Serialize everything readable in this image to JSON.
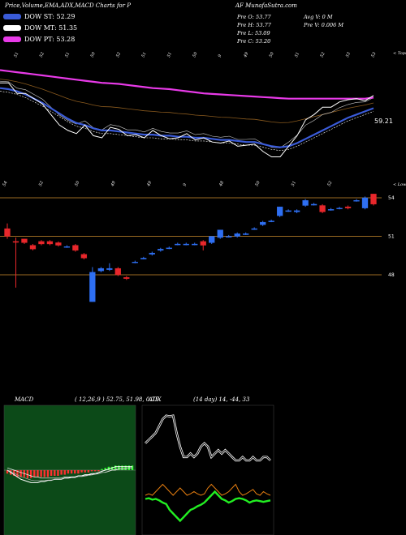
{
  "header": {
    "left": "Price,Volume,EMA,ADX,MACD Charts for P",
    "right": "AF MunafaSutra.com"
  },
  "legend": [
    {
      "label": "DOW ST: 52.29",
      "color": "#3a5bd8"
    },
    {
      "label": "DOW MT: 51.35",
      "color": "#ffffff"
    },
    {
      "label": "DOW PT: 53.28",
      "color": "#e83ae8"
    }
  ],
  "stats": {
    "open": "Pre   O: 53.77",
    "high": "Pre   H: 53.77",
    "low": "Pre   L: 53.09",
    "close": "Pre   C: 53.20",
    "avg_vol": "Avg V: 0   M",
    "pre_vol": "Pre   V: 0.006   M"
  },
  "chart_data": [
    {
      "type": "line",
      "name": "price-ema-panel",
      "top_label": "< Tops",
      "bottom_label": "< Lows",
      "last_value_label": "59.21",
      "top_ticks": [
        "51",
        "52",
        "51",
        "50",
        "52",
        "51",
        "51",
        "50",
        "9",
        "49",
        "50",
        "51",
        "52",
        "53",
        "53"
      ],
      "bottom_ticks": [
        "54",
        "52",
        "50",
        "49",
        "49",
        "9",
        "48",
        "50",
        "51",
        "52"
      ],
      "close": [
        61,
        61,
        60,
        60,
        59.5,
        59,
        58,
        57,
        56.5,
        56.2,
        57,
        56,
        55.8,
        56.8,
        56.6,
        56,
        56.1,
        55.8,
        56.5,
        56,
        55.7,
        55.8,
        56.2,
        55.6,
        55.8,
        55.4,
        55.3,
        55.5,
        55,
        55.1,
        55.2,
        54.5,
        54,
        54,
        55,
        56,
        57.5,
        58,
        58.7,
        58.7,
        59.2,
        59.4,
        59.5,
        59.3,
        59.8
      ],
      "ema_short": [
        60.5,
        60.4,
        60.2,
        59.9,
        59.5,
        59.1,
        58.6,
        58.1,
        57.6,
        57.2,
        57,
        56.7,
        56.5,
        56.5,
        56.4,
        56.3,
        56.2,
        56.1,
        56.1,
        56,
        56,
        55.9,
        55.9,
        55.8,
        55.8,
        55.7,
        55.6,
        55.6,
        55.5,
        55.4,
        55.4,
        55.2,
        55,
        54.9,
        55,
        55.3,
        55.7,
        56.1,
        56.5,
        56.9,
        57.3,
        57.7,
        58,
        58.3,
        58.6
      ],
      "ema_long": [
        62.2,
        62.1,
        62,
        61.9,
        61.8,
        61.7,
        61.6,
        61.5,
        61.4,
        61.3,
        61.2,
        61.1,
        61,
        60.95,
        60.9,
        60.8,
        60.7,
        60.6,
        60.5,
        60.45,
        60.4,
        60.3,
        60.2,
        60.1,
        60,
        59.95,
        59.9,
        59.85,
        59.8,
        59.75,
        59.7,
        59.65,
        59.6,
        59.55,
        59.5,
        59.5,
        59.5,
        59.5,
        59.5,
        59.5,
        59.5,
        59.5,
        59.5,
        59.5,
        59.6
      ]
    },
    {
      "type": "candlestick",
      "name": "daily-candles",
      "levels": [
        "54",
        "51",
        "48"
      ],
      "candles": [
        {
          "o": 51.6,
          "c": 51.0,
          "h": 52.0,
          "l": 50.8,
          "up": false
        },
        {
          "o": 50.6,
          "c": 50.6,
          "h": 50.9,
          "l": 47.0,
          "up": false
        },
        {
          "o": 50.8,
          "c": 50.5,
          "h": 50.8,
          "l": 50.4,
          "up": false
        },
        {
          "o": 50.3,
          "c": 50.0,
          "h": 50.4,
          "l": 49.9,
          "up": false
        },
        {
          "o": 50.6,
          "c": 50.4,
          "h": 50.7,
          "l": 50.3,
          "up": false
        },
        {
          "o": 50.6,
          "c": 50.4,
          "h": 50.7,
          "l": 50.3,
          "up": false
        },
        {
          "o": 50.5,
          "c": 50.3,
          "h": 50.6,
          "l": 50.2,
          "up": false
        },
        {
          "o": 50.2,
          "c": 50.2,
          "h": 50.3,
          "l": 50.1,
          "up": true
        },
        {
          "o": 50.3,
          "c": 49.9,
          "h": 50.4,
          "l": 49.8,
          "up": false
        },
        {
          "o": 49.6,
          "c": 49.3,
          "h": 49.7,
          "l": 49.2,
          "up": false
        },
        {
          "o": 45.9,
          "c": 48.2,
          "h": 48.6,
          "l": 45.9,
          "up": true
        },
        {
          "o": 48.3,
          "c": 48.5,
          "h": 48.6,
          "l": 48.2,
          "up": true
        },
        {
          "o": 48.4,
          "c": 48.5,
          "h": 48.9,
          "l": 48.3,
          "up": true
        },
        {
          "o": 48.5,
          "c": 48.0,
          "h": 48.6,
          "l": 47.9,
          "up": false
        },
        {
          "o": 47.8,
          "c": 47.7,
          "h": 47.9,
          "l": 47.6,
          "up": false
        },
        {
          "o": 49.0,
          "c": 49.0,
          "h": 49.1,
          "l": 48.9,
          "up": true
        },
        {
          "o": 49.3,
          "c": 49.3,
          "h": 49.4,
          "l": 49.2,
          "up": true
        },
        {
          "o": 49.6,
          "c": 49.7,
          "h": 49.8,
          "l": 49.5,
          "up": true
        },
        {
          "o": 49.9,
          "c": 50.0,
          "h": 50.1,
          "l": 49.8,
          "up": true
        },
        {
          "o": 50.1,
          "c": 50.1,
          "h": 50.2,
          "l": 50.0,
          "up": true
        },
        {
          "o": 50.4,
          "c": 50.4,
          "h": 50.5,
          "l": 50.3,
          "up": true
        },
        {
          "o": 50.4,
          "c": 50.4,
          "h": 50.5,
          "l": 50.3,
          "up": true
        },
        {
          "o": 50.4,
          "c": 50.4,
          "h": 50.5,
          "l": 50.3,
          "up": true
        },
        {
          "o": 50.3,
          "c": 50.6,
          "h": 50.7,
          "l": 49.9,
          "up": false
        },
        {
          "o": 50.5,
          "c": 51.0,
          "h": 51.0,
          "l": 50.4,
          "up": true
        },
        {
          "o": 50.9,
          "c": 51.5,
          "h": 51.5,
          "l": 50.8,
          "up": true
        },
        {
          "o": 51.0,
          "c": 51.0,
          "h": 51.1,
          "l": 50.9,
          "up": true
        },
        {
          "o": 51.0,
          "c": 51.2,
          "h": 51.3,
          "l": 50.9,
          "up": true
        },
        {
          "o": 51.2,
          "c": 51.2,
          "h": 51.3,
          "l": 51.1,
          "up": true
        },
        {
          "o": 51.6,
          "c": 51.6,
          "h": 51.7,
          "l": 51.5,
          "up": true
        },
        {
          "o": 51.9,
          "c": 52.1,
          "h": 52.2,
          "l": 51.8,
          "up": true
        },
        {
          "o": 52.2,
          "c": 52.2,
          "h": 52.3,
          "l": 52.1,
          "up": true
        },
        {
          "o": 52.6,
          "c": 53.3,
          "h": 53.3,
          "l": 52.5,
          "up": true
        },
        {
          "o": 53.0,
          "c": 53.0,
          "h": 53.1,
          "l": 52.9,
          "up": true
        },
        {
          "o": 52.9,
          "c": 53.0,
          "h": 53.1,
          "l": 52.8,
          "up": true
        },
        {
          "o": 53.4,
          "c": 53.8,
          "h": 53.9,
          "l": 53.3,
          "up": true
        },
        {
          "o": 53.5,
          "c": 53.5,
          "h": 53.6,
          "l": 53.4,
          "up": true
        },
        {
          "o": 53.4,
          "c": 52.9,
          "h": 53.5,
          "l": 52.8,
          "up": false
        },
        {
          "o": 53.1,
          "c": 53.1,
          "h": 53.2,
          "l": 53.0,
          "up": true
        },
        {
          "o": 53.2,
          "c": 53.2,
          "h": 53.3,
          "l": 53.1,
          "up": true
        },
        {
          "o": 53.3,
          "c": 53.2,
          "h": 53.4,
          "l": 53.1,
          "up": false
        },
        {
          "o": 53.8,
          "c": 53.8,
          "h": 53.9,
          "l": 53.7,
          "up": true
        },
        {
          "o": 53.2,
          "c": 54.0,
          "h": 54.1,
          "l": 53.1,
          "up": true
        },
        {
          "o": 54.3,
          "c": 53.5,
          "h": 54.3,
          "l": 53.4,
          "up": false
        }
      ]
    },
    {
      "type": "bar",
      "name": "macd-panel",
      "label": "MACD",
      "params": "( 12,26,9 ) 52.75, 51.98, 0.75",
      "histogram": [
        -3,
        -4,
        -5,
        -6,
        -6,
        -6,
        -7,
        -7,
        -6,
        -6,
        -6,
        -6,
        -6,
        -5,
        -5,
        -5,
        -4,
        -4,
        -3,
        -3,
        -3,
        -3,
        -2,
        -2,
        -2,
        -1,
        -1,
        -1,
        1,
        2,
        3,
        3,
        4,
        4,
        4,
        4,
        4,
        4
      ],
      "macd": [
        0,
        -2,
        -4,
        -6,
        -8,
        -9,
        -10,
        -11,
        -11,
        -11,
        -10,
        -10,
        -9,
        -9,
        -8,
        -8,
        -8,
        -7,
        -7,
        -6,
        -6,
        -5,
        -5,
        -4,
        -4,
        -3,
        -3,
        -2,
        -1,
        0,
        1,
        2,
        3,
        3,
        3,
        3,
        3,
        3
      ],
      "signal": [
        2,
        1,
        0,
        -1,
        -2,
        -3,
        -4,
        -5,
        -6,
        -6,
        -7,
        -7,
        -7,
        -7,
        -7,
        -7,
        -7,
        -6,
        -6,
        -6,
        -6,
        -5,
        -5,
        -5,
        -4,
        -4,
        -3,
        -3,
        -2,
        -2,
        -1,
        0,
        0,
        1,
        1,
        1,
        2,
        2
      ]
    },
    {
      "type": "line",
      "name": "adx-panel",
      "label": "ADX",
      "params": "(14 day) 14, -44, 33",
      "adx": [
        45,
        50,
        55,
        60,
        70,
        80,
        85,
        84,
        85,
        60,
        40,
        25,
        25,
        30,
        25,
        30,
        40,
        45,
        40,
        25,
        30,
        35,
        30,
        35,
        30,
        25,
        20,
        20,
        25,
        20,
        20,
        25,
        20,
        20,
        25,
        25,
        20
      ],
      "plus_di": [
        10,
        12,
        10,
        15,
        20,
        25,
        20,
        15,
        10,
        15,
        20,
        15,
        10,
        12,
        15,
        12,
        10,
        12,
        20,
        25,
        20,
        15,
        10,
        12,
        15,
        20,
        25,
        15,
        10,
        12,
        15,
        18,
        12,
        10,
        15,
        12,
        10
      ],
      "minus_di": [
        5,
        6,
        4,
        5,
        3,
        0,
        -2,
        -10,
        -15,
        -20,
        -25,
        -20,
        -15,
        -10,
        -8,
        -5,
        -3,
        0,
        5,
        10,
        15,
        10,
        5,
        3,
        0,
        2,
        5,
        6,
        5,
        3,
        0,
        2,
        3,
        2,
        1,
        2,
        3
      ]
    }
  ]
}
